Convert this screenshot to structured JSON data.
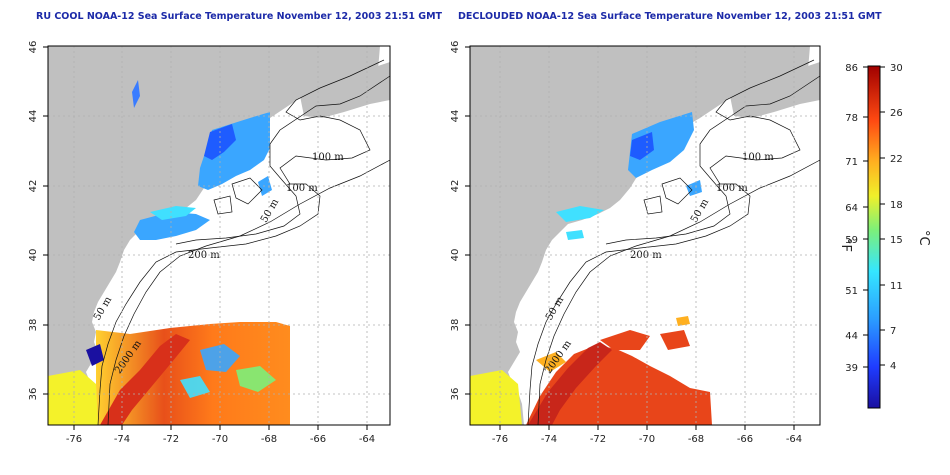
{
  "titles": {
    "left": "RU COOL NOAA-12 Sea Surface Temperature November 12, 2003 21:51 GMT",
    "right": "DECLOUDED NOAA-12 Sea Surface Temperature November 12, 2003 21:51 GMT"
  },
  "axes": {
    "x_ticks": [
      "-76",
      "-74",
      "-72",
      "-70",
      "-68",
      "-66",
      "-64"
    ],
    "y_ticks": [
      "36",
      "38",
      "40",
      "42",
      "44",
      "46"
    ]
  },
  "contour_labels": {
    "left": [
      "100 m",
      "100 m",
      "50 m",
      "200 m",
      "50 m",
      "2000 m"
    ],
    "right": [
      "100 m",
      "100 m",
      "50 m",
      "200 m",
      "50 m",
      "2000 m"
    ]
  },
  "colorbar": {
    "fahrenheit_ticks": [
      "86",
      "78",
      "71",
      "64",
      "59",
      "51",
      "44",
      "39"
    ],
    "celsius_ticks": [
      "30",
      "26",
      "22",
      "18",
      "15",
      "11",
      "7",
      "4"
    ],
    "unit_f": "°F",
    "unit_c": "°C"
  },
  "colors": {
    "land": "#c0c0c0",
    "title": "#1c2aa8",
    "grid": "#b0b0b0"
  }
}
